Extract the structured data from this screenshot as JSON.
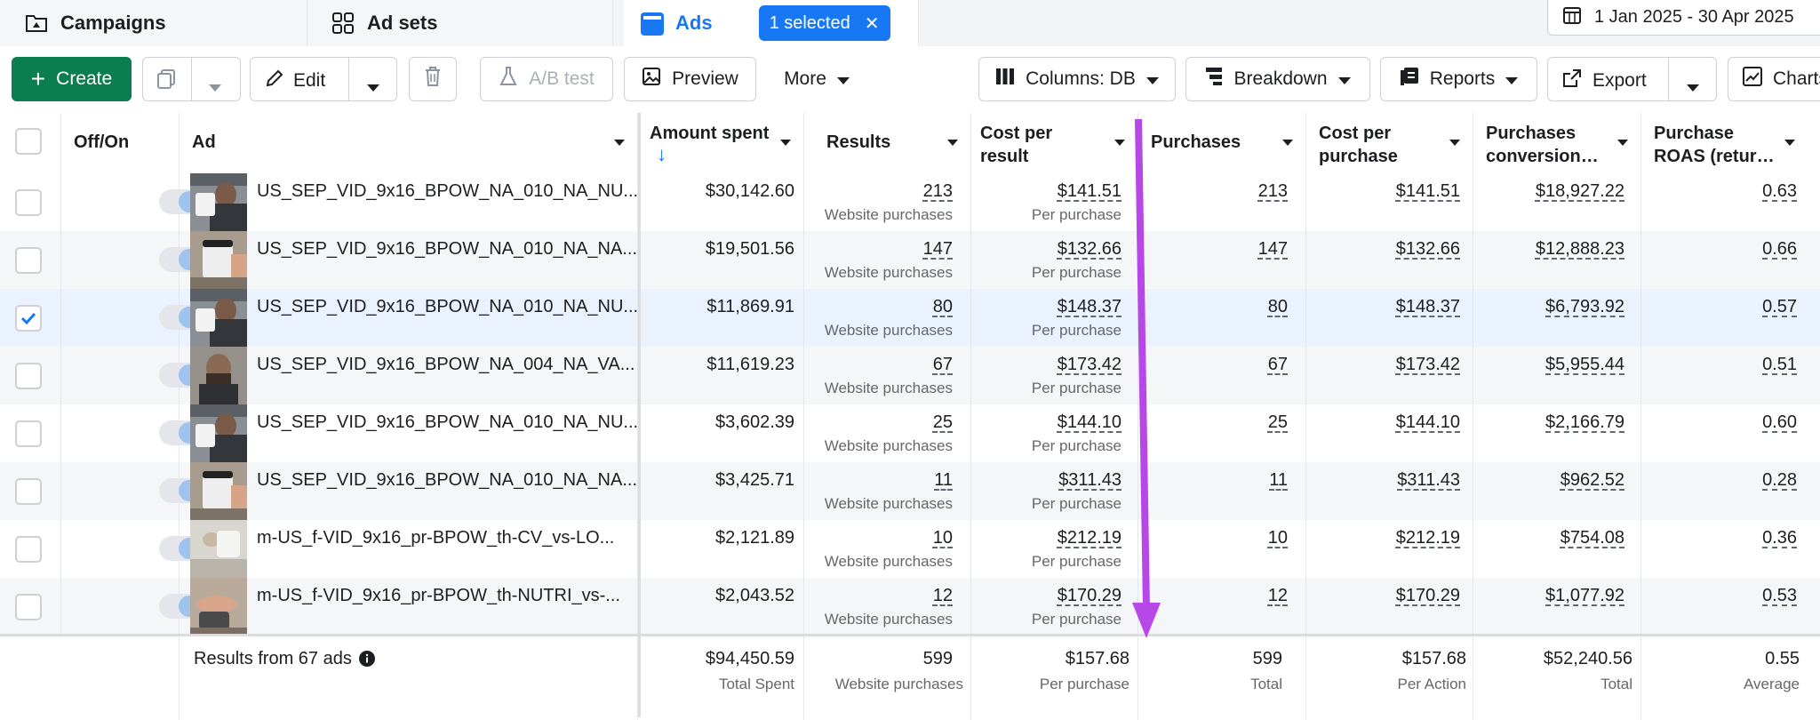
{
  "tabs": [
    {
      "label": "Campaigns",
      "icon": "folder-icon"
    },
    {
      "label": "Ad sets",
      "icon": "grid-icon"
    },
    {
      "label": "Ads",
      "icon": "ad-panel-icon"
    }
  ],
  "selection_pill": {
    "label": "1 selected",
    "close": "✕"
  },
  "date_range": "1 Jan 2025 - 30 Apr 2025",
  "toolbar": {
    "create": "Create",
    "edit": "Edit",
    "ab_test": "A/B test",
    "preview": "Preview",
    "more": "More",
    "columns": "Columns: DB",
    "breakdown": "Breakdown",
    "reports": "Reports",
    "export": "Export",
    "chart": "Charts"
  },
  "columns": {
    "offon": "Off/On",
    "ad": "Ad",
    "amount_spent": "Amount spent",
    "results": "Results",
    "cost_per_result": "Cost per result",
    "purchases": "Purchases",
    "cost_per_purchase": "Cost per purchase",
    "conversion": "Purchases conversion…",
    "roas": "Purchase ROAS (retur…"
  },
  "sort_arrow": "↓",
  "result_sub": "Website purchases",
  "cost_sub": "Per purchase",
  "rows": [
    {
      "name": "US_SEP_VID_9x16_BPOW_NA_010_NA_NU...",
      "spent": "$30,142.60",
      "results": "213",
      "cpr": "$141.51",
      "purchases": "213",
      "cpp": "$141.51",
      "conv": "$18,927.22",
      "roas": "0.63",
      "selected": false,
      "thumb": "a"
    },
    {
      "name": "US_SEP_VID_9x16_BPOW_NA_010_NA_NA...",
      "spent": "$19,501.56",
      "results": "147",
      "cpr": "$132.66",
      "purchases": "147",
      "cpp": "$132.66",
      "conv": "$12,888.23",
      "roas": "0.66",
      "selected": false,
      "thumb": "b"
    },
    {
      "name": "US_SEP_VID_9x16_BPOW_NA_010_NA_NU...",
      "spent": "$11,869.91",
      "results": "80",
      "cpr": "$148.37",
      "purchases": "80",
      "cpp": "$148.37",
      "conv": "$6,793.92",
      "roas": "0.57",
      "selected": true,
      "thumb": "a"
    },
    {
      "name": "US_SEP_VID_9x16_BPOW_NA_004_NA_VA...",
      "spent": "$11,619.23",
      "results": "67",
      "cpr": "$173.42",
      "purchases": "67",
      "cpp": "$173.42",
      "conv": "$5,955.44",
      "roas": "0.51",
      "selected": false,
      "thumb": "c"
    },
    {
      "name": "US_SEP_VID_9x16_BPOW_NA_010_NA_NU...",
      "spent": "$3,602.39",
      "results": "25",
      "cpr": "$144.10",
      "purchases": "25",
      "cpp": "$144.10",
      "conv": "$2,166.79",
      "roas": "0.60",
      "selected": false,
      "thumb": "a"
    },
    {
      "name": "US_SEP_VID_9x16_BPOW_NA_010_NA_NA...",
      "spent": "$3,425.71",
      "results": "11",
      "cpr": "$311.43",
      "purchases": "11",
      "cpp": "$311.43",
      "conv": "$962.52",
      "roas": "0.28",
      "selected": false,
      "thumb": "b"
    },
    {
      "name": "m-US_f-VID_9x16_pr-BPOW_th-CV_vs-LO...",
      "spent": "$2,121.89",
      "results": "10",
      "cpr": "$212.19",
      "purchases": "10",
      "cpp": "$212.19",
      "conv": "$754.08",
      "roas": "0.36",
      "selected": false,
      "thumb": "d"
    },
    {
      "name": "m-US_f-VID_9x16_pr-BPOW_th-NUTRI_vs-...",
      "spent": "$2,043.52",
      "results": "12",
      "cpr": "$170.29",
      "purchases": "12",
      "cpp": "$170.29",
      "conv": "$1,077.92",
      "roas": "0.53",
      "selected": false,
      "thumb": "e"
    }
  ],
  "footer": {
    "label": "Results from 67 ads",
    "spent": "$94,450.59",
    "spent_sub": "Total Spent",
    "results": "599",
    "results_sub": "Website purchases",
    "cpr": "$157.68",
    "cpr_sub": "Per purchase",
    "purchases": "599",
    "purchases_sub": "Total",
    "cpp": "$157.68",
    "cpp_sub": "Per Action",
    "conv": "$52,240.56",
    "conv_sub": "Total",
    "roas": "0.55",
    "roas_sub": "Average"
  },
  "colors": {
    "accent": "#1877f2",
    "create": "#0a7d51",
    "annotation_arrow": "#b847e8"
  }
}
